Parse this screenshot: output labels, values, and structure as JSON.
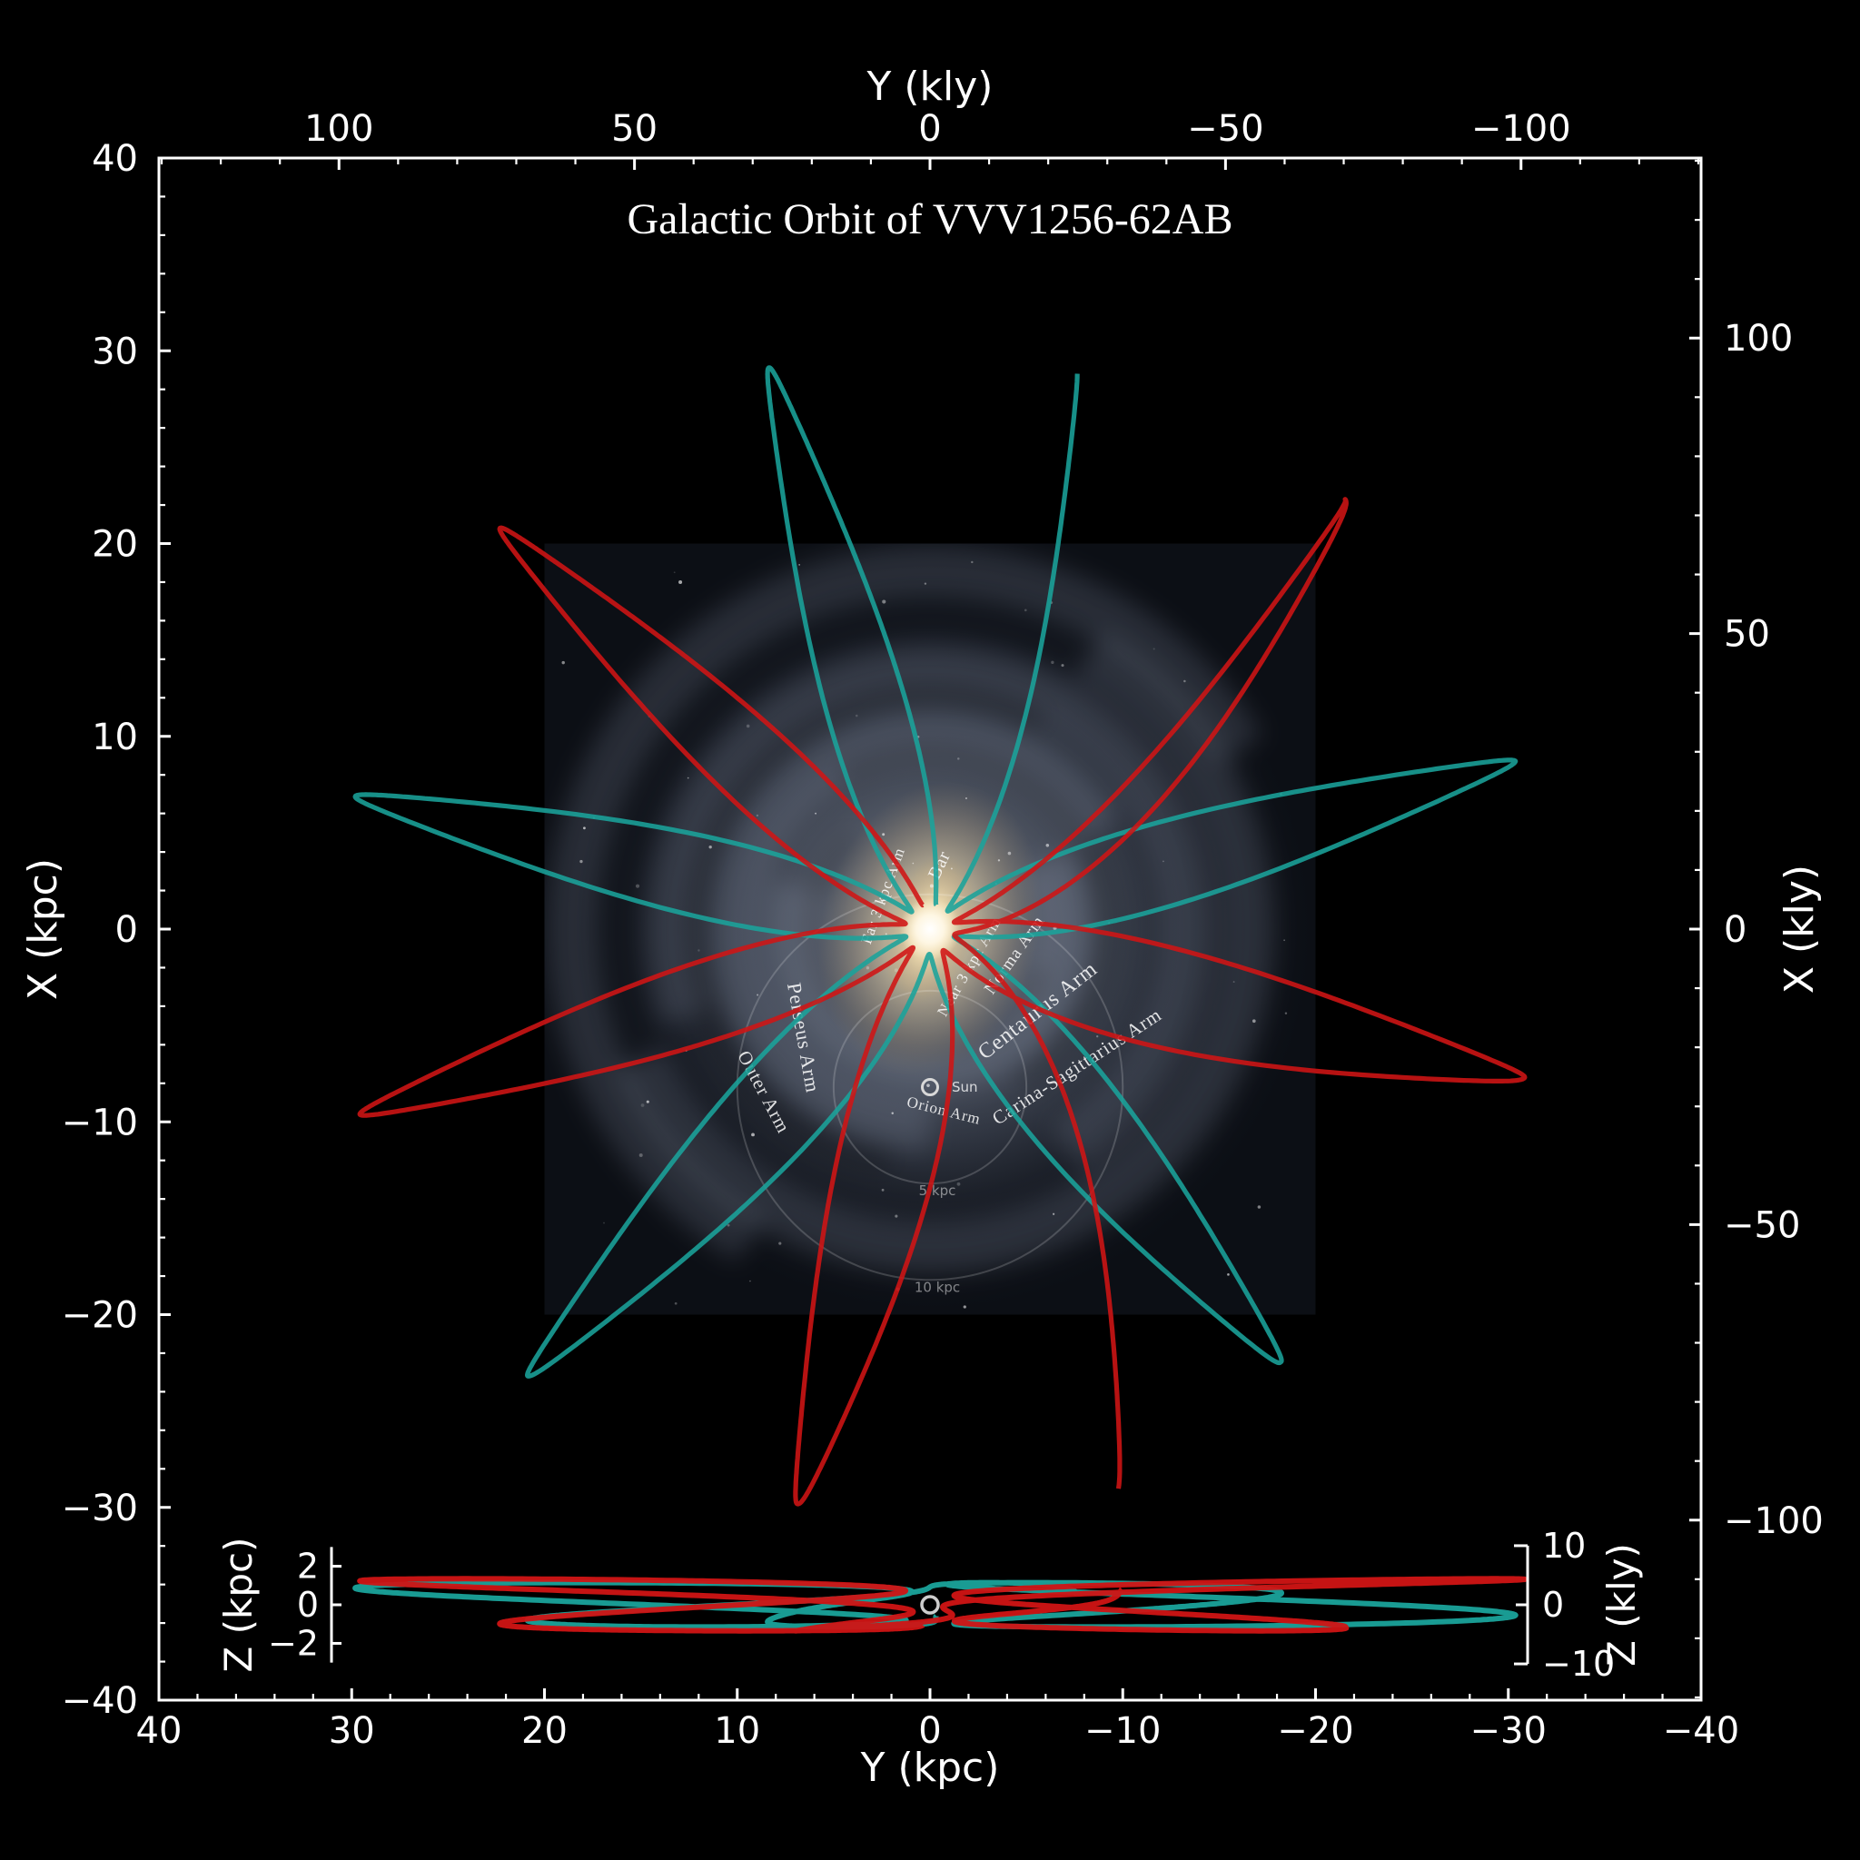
{
  "figure": {
    "background_color": "#000000",
    "foreground_color": "#ffffff"
  },
  "chart_data": {
    "type": "line",
    "title": "Galactic Orbit of VVV1256-62AB",
    "axes": {
      "bottom": {
        "label": "Y (kpc)",
        "ticks": [
          40,
          30,
          20,
          10,
          0,
          -10,
          -20,
          -30,
          -40
        ],
        "min": -40,
        "max": 40,
        "inverted": true,
        "minor_step": 2
      },
      "left": {
        "label": "X (kpc)",
        "ticks": [
          40,
          30,
          20,
          10,
          0,
          -10,
          -20,
          -30,
          -40
        ],
        "min": -40,
        "max": 40,
        "minor_step": 2
      },
      "top": {
        "label": "Y (kly)",
        "ticks": [
          100,
          50,
          0,
          -50,
          -100
        ],
        "minor_step": 10,
        "inverted": true
      },
      "right": {
        "label": "X (kly)",
        "ticks": [
          100,
          50,
          0,
          -50,
          -100
        ],
        "minor_step": 10
      },
      "kly_per_kpc": 3.2616,
      "grid": false
    },
    "series": [
      {
        "name": "orbit-teal",
        "color": "#1aa39b",
        "line_width": 5.2,
        "opacity": 0.88,
        "r_peri_kpc": 1.3,
        "petals": [
          {
            "angle_deg": 16,
            "r_apo_kpc": 30.3
          },
          {
            "angle_deg": 77,
            "r_apo_kpc": 30.6
          },
          {
            "angle_deg": 138,
            "r_apo_kpc": 31.2
          },
          {
            "angle_deg": 219,
            "r_apo_kpc": 28.9
          },
          {
            "angle_deg": 286,
            "r_apo_kpc": 31.6
          }
        ],
        "tail": {
          "angle_deg": 345.5,
          "r_end_kpc": 29.8
        },
        "z_amp_kpc": 1.15,
        "z_freq_per_period": 0.52,
        "z_phase_rad": 3.66
      },
      {
        "name": "orbit-red",
        "color": "#d01414",
        "line_width": 5.2,
        "opacity": 0.88,
        "r_peri_kpc": 1.3,
        "petals": [
          {
            "angle_deg": 47,
            "r_apo_kpc": 30.5
          },
          {
            "angle_deg": 108,
            "r_apo_kpc": 31.1
          },
          {
            "angle_deg": 167,
            "r_apo_kpc": 30.6
          },
          {
            "angle_deg": 256,
            "r_apo_kpc": 31.8
          },
          {
            "angle_deg": 316,
            "r_apo_kpc": 31.0
          }
        ],
        "tail": {
          "angle_deg": 198,
          "r_end_kpc": 30.6
        },
        "z_amp_kpc": 1.35,
        "z_freq_per_period": 0.45,
        "z_phase_rad": 4.03
      }
    ],
    "background_map": {
      "half_width_kpc": 20,
      "sun": {
        "label": "Sun",
        "y_kpc": 0,
        "x_kpc": -8.2
      },
      "rings": [
        {
          "radius_kpc": 5,
          "label": "5 kpc"
        },
        {
          "radius_kpc": 10,
          "label": "10 kpc"
        }
      ],
      "arm_labels": [
        {
          "label": "Far 3 kpc Arm",
          "y_kpc": 2.2,
          "x_kpc": 1.65,
          "rot_deg": -70,
          "size": 17
        },
        {
          "label": "Bar",
          "y_kpc": -0.75,
          "x_kpc": 3.2,
          "rot_deg": -65,
          "size": 20
        },
        {
          "label": "Near 3 kpc Arm",
          "y_kpc": -2.26,
          "x_kpc": -2.07,
          "rot_deg": -60,
          "size": 17
        },
        {
          "label": "Norma Arm",
          "y_kpc": -4.6,
          "x_kpc": -1.5,
          "rot_deg": -55,
          "size": 19
        },
        {
          "label": "Centaurus Arm",
          "y_kpc": -5.8,
          "x_kpc": -4.5,
          "rot_deg": -38,
          "size": 24
        },
        {
          "label": "Carina-Sagittarius Arm",
          "y_kpc": -7.8,
          "x_kpc": -7.4,
          "rot_deg": -33,
          "size": 21
        },
        {
          "label": "Perseus Arm",
          "y_kpc": 6.9,
          "x_kpc": -5.7,
          "rot_deg": 80,
          "size": 22
        },
        {
          "label": "Outer Arm",
          "y_kpc": 8.9,
          "x_kpc": -8.6,
          "rot_deg": 62,
          "size": 21
        },
        {
          "label": "Orion Arm",
          "y_kpc": -0.66,
          "x_kpc": -9.66,
          "rot_deg": 14,
          "size": 17
        }
      ]
    },
    "inset": {
      "left_scale": {
        "label": "Z (kpc)",
        "ticks": [
          2,
          0,
          -2
        ]
      },
      "right_scale": {
        "label": "Z (kly)",
        "ticks": [
          10,
          0,
          -10
        ]
      },
      "z_half_range_kpc": 3,
      "line_width": 6
    }
  }
}
